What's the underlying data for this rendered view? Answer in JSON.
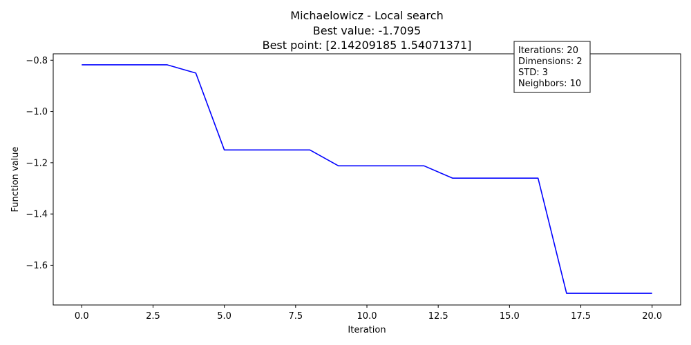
{
  "chart_data": {
    "type": "line",
    "title_lines": [
      "Michaelowicz - Local search",
      "Best value: -1.7095",
      "Best point: [2.14209185 1.54071371]"
    ],
    "xlabel": "Iteration",
    "ylabel": "Function value",
    "xlim": [
      -1.0,
      21.0
    ],
    "ylim": [
      -1.755,
      -0.775
    ],
    "xticks": [
      0.0,
      2.5,
      5.0,
      7.5,
      10.0,
      12.5,
      15.0,
      17.5,
      20.0
    ],
    "xtick_labels": [
      "0.0",
      "2.5",
      "5.0",
      "7.5",
      "10.0",
      "12.5",
      "15.0",
      "17.5",
      "20.0"
    ],
    "yticks": [
      -1.6,
      -1.4,
      -1.2,
      -1.0,
      -0.8
    ],
    "ytick_labels": [
      "−1.6",
      "−1.4",
      "−1.2",
      "−1.0",
      "−0.8"
    ],
    "grid": false,
    "series": [
      {
        "color": "#0000ff",
        "x": [
          0,
          1,
          2,
          3,
          4,
          5,
          6,
          7,
          8,
          9,
          10,
          11,
          12,
          13,
          14,
          15,
          16,
          17,
          18,
          19,
          20
        ],
        "y": [
          -0.818,
          -0.818,
          -0.818,
          -0.818,
          -0.85,
          -1.15,
          -1.15,
          -1.15,
          -1.15,
          -1.212,
          -1.212,
          -1.212,
          -1.212,
          -1.26,
          -1.26,
          -1.26,
          -1.26,
          -1.7095,
          -1.7095,
          -1.7095,
          -1.7095
        ]
      }
    ],
    "annotation_box": {
      "lines": [
        "Iterations: 20",
        "Dimensions: 2",
        "STD: 3",
        "Neighbors: 10"
      ],
      "placement": "top-right"
    }
  }
}
